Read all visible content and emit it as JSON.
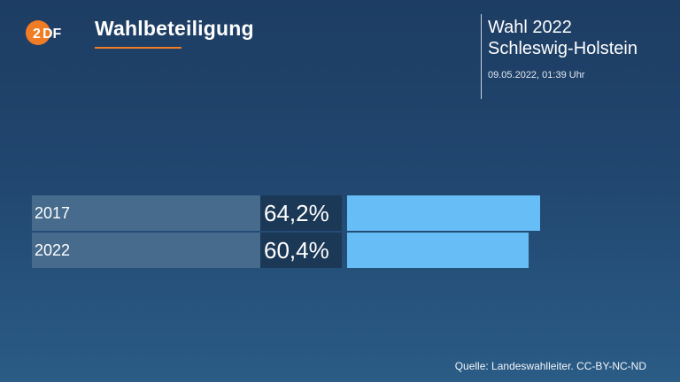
{
  "header": {
    "logo_text": "2DF",
    "title": "Wahlbeteiligung",
    "election_line1": "Wahl 2022",
    "election_line2": "Schleswig-Holstein",
    "timestamp": "09.05.2022, 01:39 Uhr"
  },
  "colors": {
    "accent": "#f07d26",
    "bar": "#67bdf5",
    "label_bg": "#466b8c",
    "value_bg": "#1b3856"
  },
  "chart_data": {
    "type": "bar",
    "orientation": "horizontal",
    "title": "Wahlbeteiligung",
    "categories": [
      "2017",
      "2022"
    ],
    "values": [
      64.2,
      60.4
    ],
    "value_labels": [
      "64,2%",
      "60,4%"
    ],
    "unit": "%",
    "xlim": [
      0,
      100
    ],
    "grid": false
  },
  "footer": {
    "source": "Quelle: Landeswahlleiter. CC-BY-NC-ND"
  }
}
